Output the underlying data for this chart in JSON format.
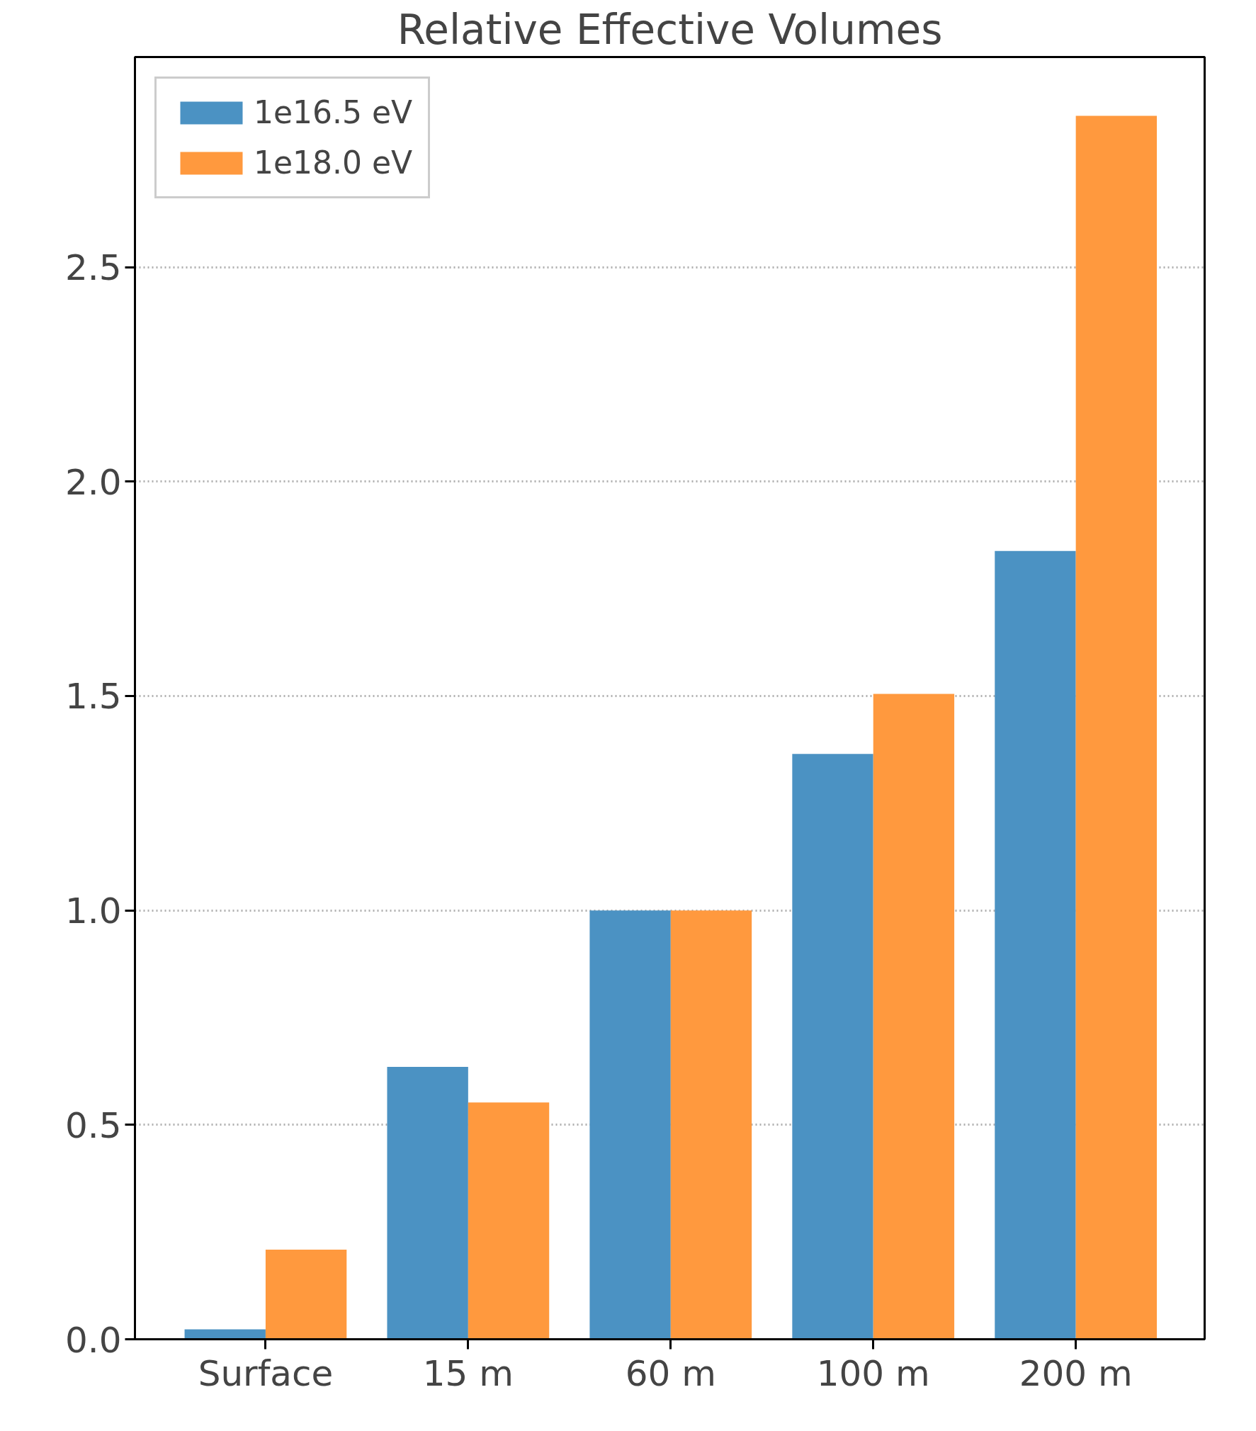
{
  "chart_data": {
    "type": "bar",
    "title": "Relative Effective Volumes",
    "categories": [
      "Surface",
      "15 m",
      "60 m",
      "100 m",
      "200 m"
    ],
    "series": [
      {
        "name": "1e16.5 eV",
        "color": "#4b92c3",
        "values": [
          0.023,
          0.635,
          1.0,
          1.365,
          1.838
        ]
      },
      {
        "name": "1e18.0 eV",
        "color": "#ff993e",
        "values": [
          0.209,
          0.552,
          1.0,
          1.505,
          2.853
        ]
      }
    ],
    "ylim": [
      0,
      2.99
    ],
    "yticks": [
      {
        "value": 0,
        "label": "0.0"
      },
      0.5,
      {
        "value": 1,
        "label": "1.0"
      },
      1.5,
      {
        "value": 2,
        "label": "2.0"
      },
      2.5
    ],
    "grid": "y",
    "legend": "top left"
  }
}
